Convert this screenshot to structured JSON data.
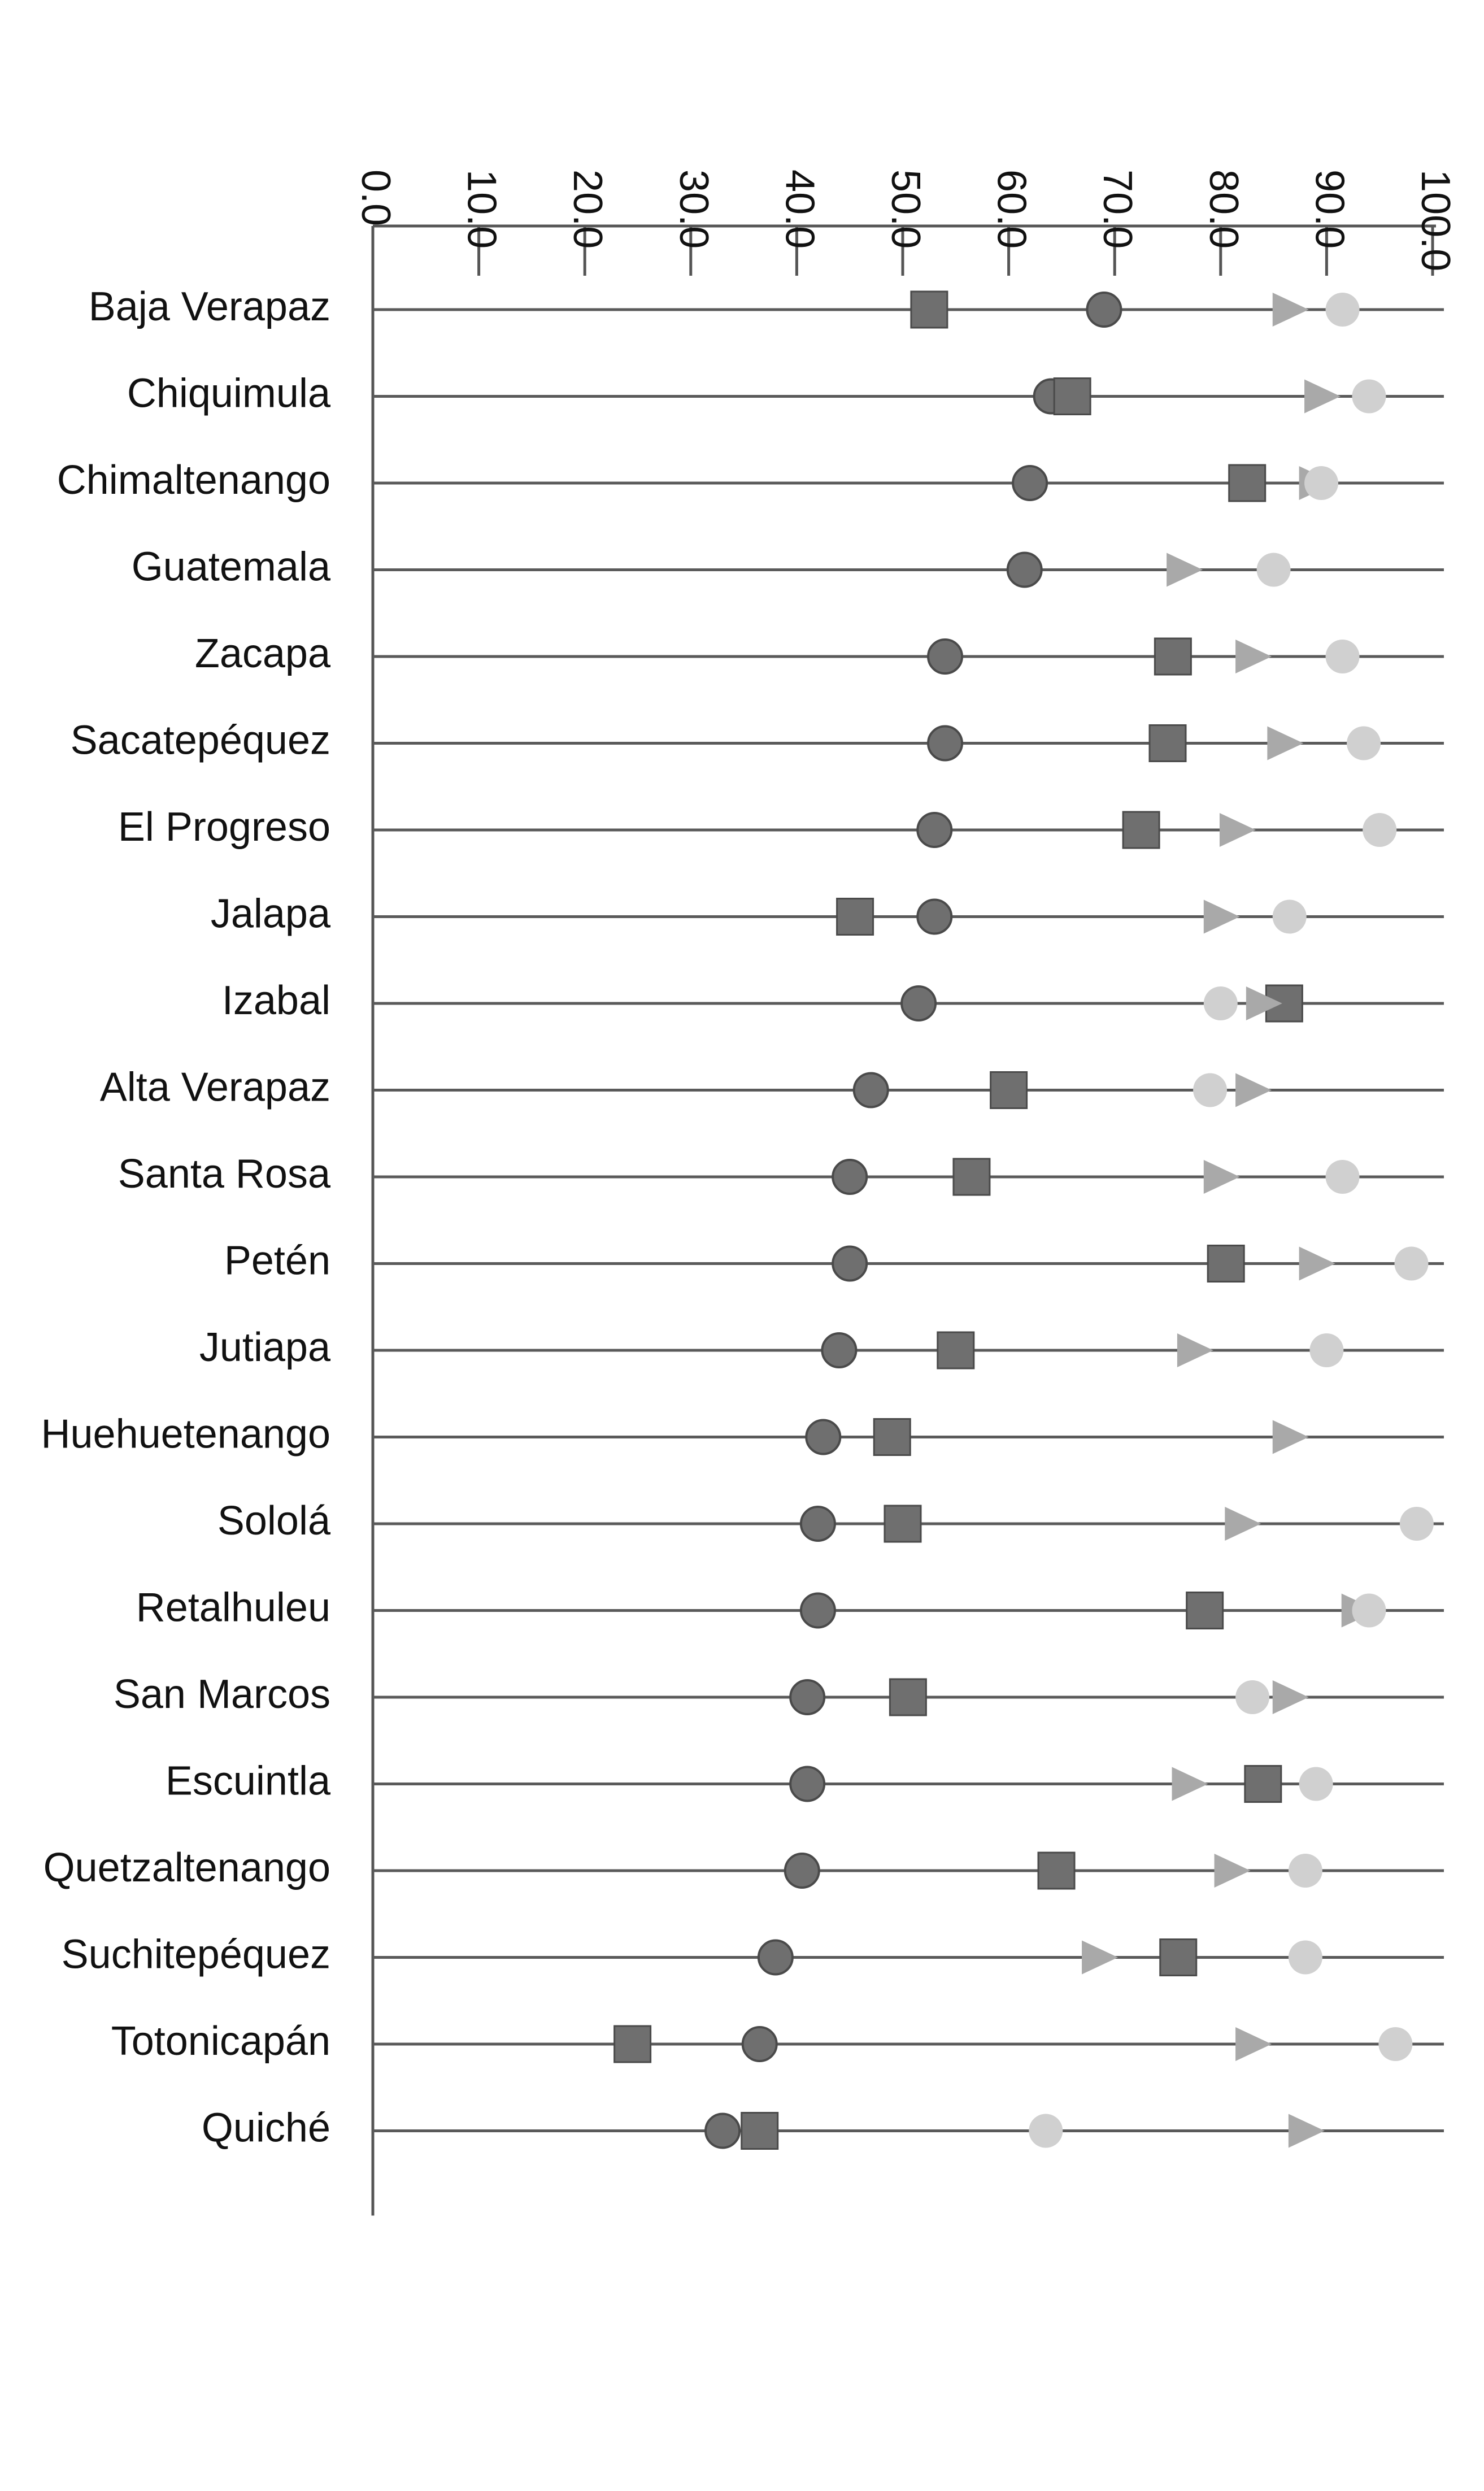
{
  "chart_data": {
    "type": "scatter",
    "orientation": "horizontal",
    "text_rotation": "ticks rotated 90 degrees",
    "categories": [
      "Baja Verapaz",
      "Chiquimula",
      "Chimaltenango",
      "Guatemala",
      "Zacapa",
      "Sacatepéquez",
      "El Progreso",
      "Jalapa",
      "Izabal",
      "Alta Verapaz",
      "Santa Rosa",
      "Petén",
      "Jutiapa",
      "Huehuetenango",
      "Sololá",
      "Retalhuleu",
      "San Marcos",
      "Escuintla",
      "Quetzaltenango",
      "Suchitepéquez",
      "Totonicapán",
      "Quiché"
    ],
    "xlim": [
      0,
      100
    ],
    "ticks": [
      "0.0",
      "10.0",
      "20.0",
      "30.0",
      "40.0",
      "50.0",
      "60.0",
      "70.0",
      "80.0",
      "90.0",
      "100.0"
    ],
    "series": [
      {
        "marker": "circle",
        "color": "#6f6f6f",
        "values": [
          69,
          64,
          62,
          61.5,
          54,
          54,
          53,
          53,
          51.5,
          47,
          45,
          45,
          44,
          42.5,
          42,
          42,
          41,
          41,
          40.5,
          38,
          36.5,
          33
        ]
      },
      {
        "marker": "square",
        "color": "#6f6f6f",
        "values": [
          52.5,
          66,
          82.5,
          null,
          75.5,
          75,
          72.5,
          45.5,
          86,
          60,
          56.5,
          80.5,
          55,
          49,
          50,
          78.5,
          50.5,
          84,
          64.5,
          76,
          24.5,
          36.5
        ]
      },
      {
        "marker": "triangle",
        "color": "#a9a9a9",
        "values": [
          86.5,
          89.5,
          89,
          76.5,
          83,
          86,
          81.5,
          80,
          84,
          83,
          80,
          89,
          77.5,
          86.5,
          82,
          93,
          86.5,
          77,
          81,
          68.5,
          83,
          88
        ]
      },
      {
        "marker": "circle",
        "color": "#d0d0d0",
        "values": [
          91.5,
          94,
          89.5,
          85,
          91.5,
          93.5,
          95,
          86.5,
          80,
          79,
          91.5,
          98,
          90,
          null,
          98.5,
          94,
          83,
          89,
          88,
          88,
          96.5,
          63.5
        ]
      }
    ],
    "grid": false
  }
}
